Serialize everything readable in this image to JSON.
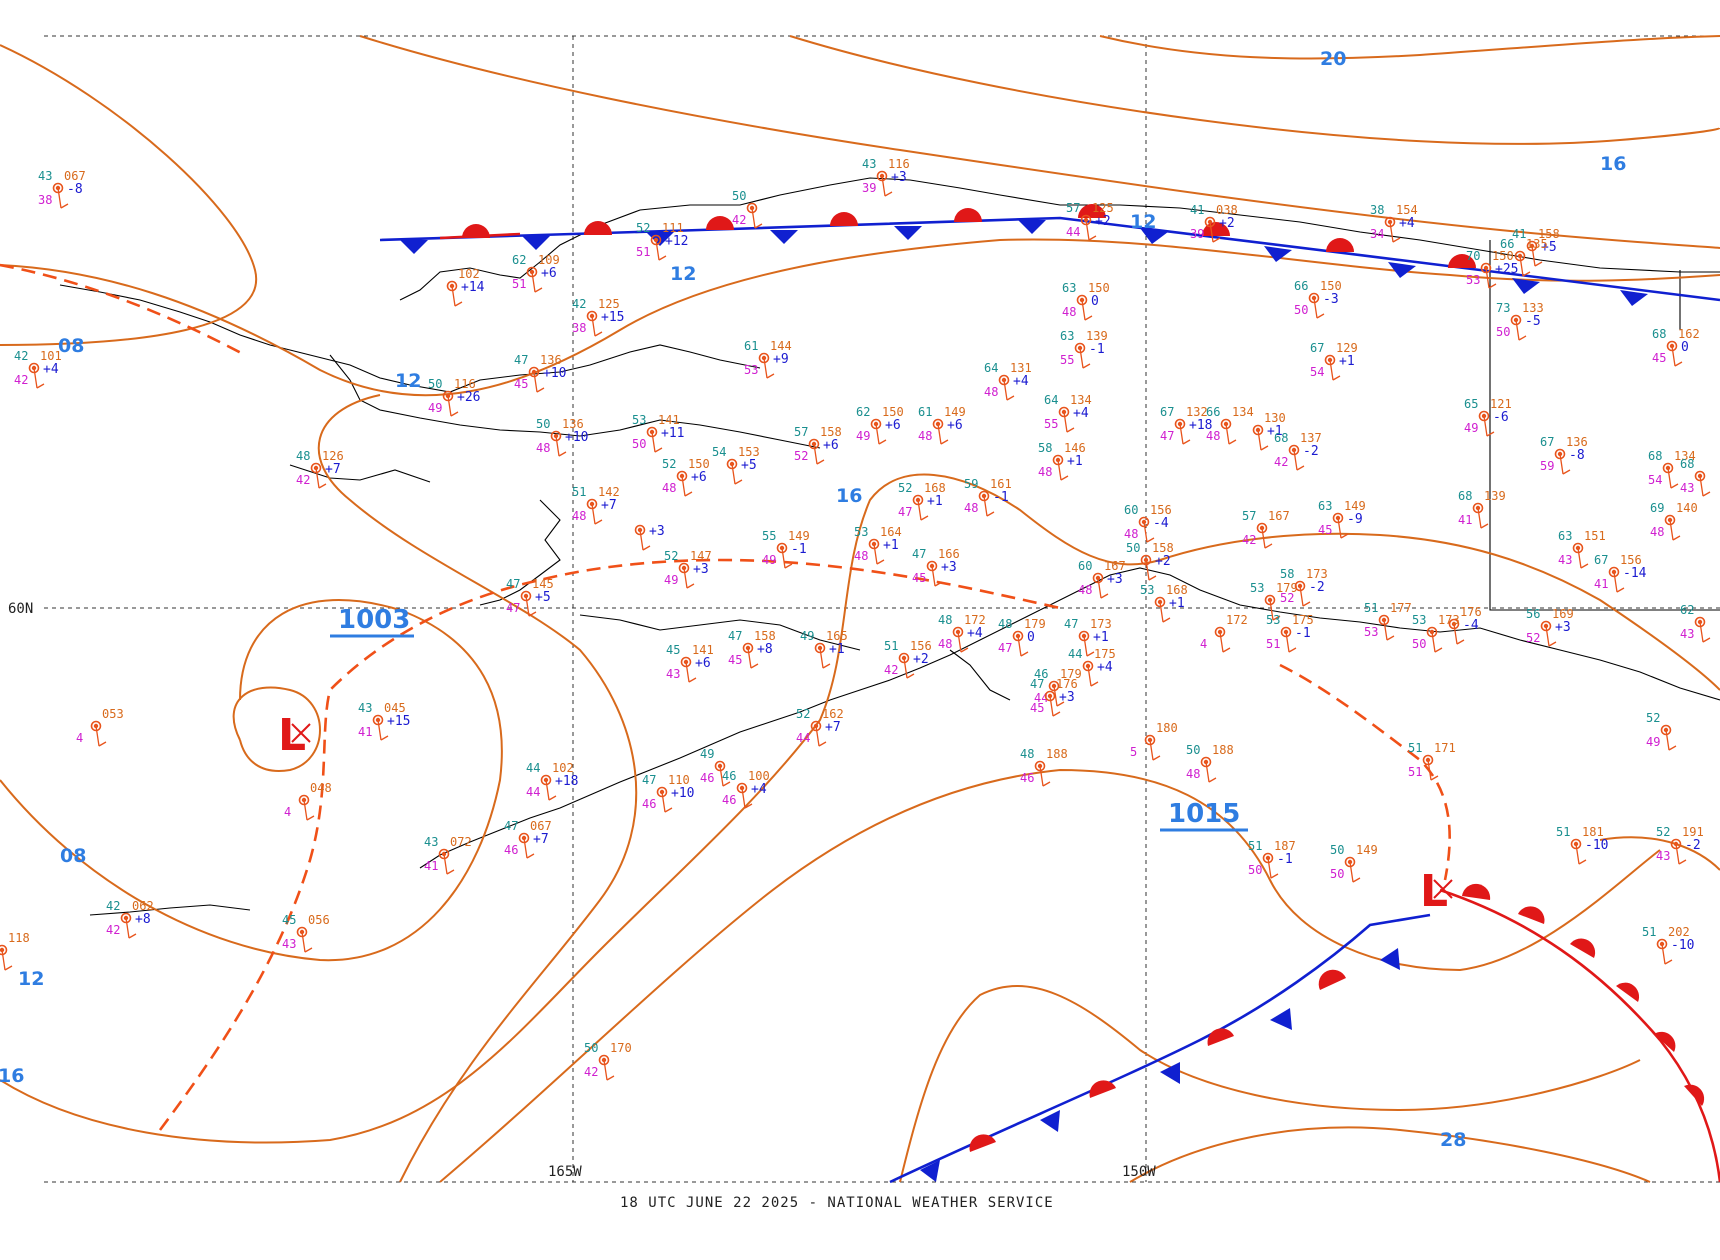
{
  "footer": "18 UTC JUNE 22 2025 - NATIONAL WEATHER SERVICE",
  "axis": {
    "lon_165": "165W",
    "lon_150": "150W",
    "lat_60": "60N"
  },
  "isobar_labels": [
    "08",
    "12",
    "12",
    "12",
    "08",
    "12",
    "16",
    "16",
    "20",
    "16",
    "28"
  ],
  "pressure_centers": [
    {
      "symbol": "L",
      "value": "1003"
    },
    {
      "symbol": "L",
      "value": "1015"
    }
  ],
  "stations": [
    {
      "t": "43",
      "p": "067",
      "tend": "-8",
      "d": "38"
    },
    {
      "t": "42",
      "p": "101",
      "tend": "+4",
      "d": "42"
    },
    {
      "t": "",
      "p": "102",
      "tend": "+14",
      "d": ""
    },
    {
      "t": "62",
      "p": "109",
      "tend": "+6",
      "d": "51"
    },
    {
      "t": "52",
      "p": "111",
      "tend": "+12",
      "d": "51"
    },
    {
      "t": "50",
      "p": "",
      "tend": "",
      "d": "42"
    },
    {
      "t": "43",
      "p": "116",
      "tend": "+3",
      "d": "39"
    },
    {
      "t": "42",
      "p": "125",
      "tend": "+15",
      "d": "38"
    },
    {
      "t": "47",
      "p": "136",
      "tend": "+10",
      "d": "45"
    },
    {
      "t": "50",
      "p": "116",
      "tend": "+26",
      "d": "49"
    },
    {
      "t": "61",
      "p": "144",
      "tend": "+9",
      "d": "53"
    },
    {
      "t": "48",
      "p": "126",
      "tend": "+7",
      "d": "42"
    },
    {
      "t": "50",
      "p": "136",
      "tend": "+10",
      "d": "48"
    },
    {
      "t": "53",
      "p": "141",
      "tend": "+11",
      "d": "50"
    },
    {
      "t": "57",
      "p": "158",
      "tend": "+6",
      "d": "52"
    },
    {
      "t": "62",
      "p": "150",
      "tend": "+6",
      "d": "49"
    },
    {
      "t": "61",
      "p": "149",
      "tend": "+6",
      "d": "48"
    },
    {
      "t": "54",
      "p": "153",
      "tend": "+5",
      "d": ""
    },
    {
      "t": "52",
      "p": "150",
      "tend": "+6",
      "d": "48"
    },
    {
      "t": "51",
      "p": "142",
      "tend": "+7",
      "d": "48"
    },
    {
      "t": "",
      "p": "",
      "tend": "+3",
      "d": ""
    },
    {
      "t": "52",
      "p": "168",
      "tend": "+1",
      "d": "47"
    },
    {
      "t": "59",
      "p": "161",
      "tend": "-1",
      "d": "48"
    },
    {
      "t": "55",
      "p": "149",
      "tend": "-1",
      "d": "49"
    },
    {
      "t": "53",
      "p": "164",
      "tend": "+1",
      "d": "48"
    },
    {
      "t": "47",
      "p": "166",
      "tend": "+3",
      "d": "45"
    },
    {
      "t": "52",
      "p": "147",
      "tend": "+3",
      "d": "49"
    },
    {
      "t": "47",
      "p": "145",
      "tend": "+5",
      "d": "47"
    },
    {
      "t": "47",
      "p": "158",
      "tend": "+8",
      "d": "45"
    },
    {
      "t": "49",
      "p": "165",
      "tend": "+1",
      "d": ""
    },
    {
      "t": "51",
      "p": "156",
      "tend": "+2",
      "d": "42"
    },
    {
      "t": "45",
      "p": "141",
      "tend": "+6",
      "d": "43"
    },
    {
      "t": "52",
      "p": "162",
      "tend": "+7",
      "d": "44"
    },
    {
      "t": "43",
      "p": "045",
      "tend": "+15",
      "d": "41"
    },
    {
      "t": "",
      "p": "053",
      "tend": "",
      "d": "4"
    },
    {
      "t": "",
      "p": "048",
      "tend": "",
      "d": "4"
    },
    {
      "t": "44",
      "p": "102",
      "tend": "+18",
      "d": "44"
    },
    {
      "t": "49",
      "p": "",
      "tend": "",
      "d": "46"
    },
    {
      "t": "47",
      "p": "110",
      "tend": "+10",
      "d": "46"
    },
    {
      "t": "46",
      "p": "100",
      "tend": "+4",
      "d": "46"
    },
    {
      "t": "43",
      "p": "072",
      "tend": "",
      "d": "41"
    },
    {
      "t": "47",
      "p": "067",
      "tend": "+7",
      "d": "46"
    },
    {
      "t": "42",
      "p": "062",
      "tend": "+8",
      "d": "42"
    },
    {
      "t": "45",
      "p": "056",
      "tend": "",
      "d": "43"
    },
    {
      "t": "",
      "p": "118",
      "tend": "",
      "d": ""
    },
    {
      "t": "50",
      "p": "170",
      "tend": "",
      "d": "42"
    },
    {
      "t": "63",
      "p": "150",
      "tend": "0",
      "d": "48"
    },
    {
      "t": "63",
      "p": "139",
      "tend": "-1",
      "d": "55"
    },
    {
      "t": "64",
      "p": "131",
      "tend": "+4",
      "d": "48"
    },
    {
      "t": "64",
      "p": "134",
      "tend": "+4",
      "d": "55"
    },
    {
      "t": "58",
      "p": "146",
      "tend": "+1",
      "d": "48"
    },
    {
      "t": "57",
      "p": "125",
      "tend": "+2",
      "d": "44"
    },
    {
      "t": "41",
      "p": "038",
      "tend": "+2",
      "d": "39"
    },
    {
      "t": "38",
      "p": "154",
      "tend": "+4",
      "d": "34"
    },
    {
      "t": "41",
      "p": "158",
      "tend": "+5",
      "d": ""
    },
    {
      "t": "66",
      "p": "150",
      "tend": "-3",
      "d": "50"
    },
    {
      "t": "67",
      "p": "129",
      "tend": "+1",
      "d": "54"
    },
    {
      "t": "67",
      "p": "132",
      "tend": "+18",
      "d": "47"
    },
    {
      "t": "66",
      "p": "134",
      "tend": "",
      "d": "48"
    },
    {
      "t": "",
      "p": "130",
      "tend": "+1",
      "d": ""
    },
    {
      "t": "68",
      "p": "137",
      "tend": "-2",
      "d": "42"
    },
    {
      "t": "65",
      "p": "121",
      "tend": "-6",
      "d": "49"
    },
    {
      "t": "66",
      "p": "135",
      "tend": "",
      "d": ""
    },
    {
      "t": "70",
      "p": "150",
      "tend": "+25",
      "d": "53"
    },
    {
      "t": "73",
      "p": "133",
      "tend": "-5",
      "d": "50"
    },
    {
      "t": "67",
      "p": "136",
      "tend": "-8",
      "d": "59"
    },
    {
      "t": "68",
      "p": "162",
      "tend": "0",
      "d": "45"
    },
    {
      "t": "68",
      "p": "134",
      "tend": "",
      "d": "54"
    },
    {
      "t": "69",
      "p": "140",
      "tend": "",
      "d": "48"
    },
    {
      "t": "68",
      "p": "139",
      "tend": "",
      "d": "41"
    },
    {
      "t": "63",
      "p": "149",
      "tend": "-9",
      "d": "45"
    },
    {
      "t": "63",
      "p": "151",
      "tend": "",
      "d": "43"
    },
    {
      "t": "67",
      "p": "156",
      "tend": "-14",
      "d": "41"
    },
    {
      "t": "60",
      "p": "156",
      "tend": "-4",
      "d": "48"
    },
    {
      "t": "57",
      "p": "167",
      "tend": "",
      "d": "42"
    },
    {
      "t": "50",
      "p": "158",
      "tend": "+2",
      "d": ""
    },
    {
      "t": "60",
      "p": "167",
      "tend": "+3",
      "d": "48"
    },
    {
      "t": "53",
      "p": "168",
      "tend": "+1",
      "d": ""
    },
    {
      "t": "53",
      "p": "179",
      "tend": "",
      "d": ""
    },
    {
      "t": "58",
      "p": "173",
      "tend": "-2",
      "d": "52"
    },
    {
      "t": "48",
      "p": "172",
      "tend": "+4",
      "d": "48"
    },
    {
      "t": "48",
      "p": "179",
      "tend": "0",
      "d": "47"
    },
    {
      "t": "47",
      "p": "173",
      "tend": "+1",
      "d": ""
    },
    {
      "t": "44",
      "p": "175",
      "tend": "+4",
      "d": ""
    },
    {
      "t": "",
      "p": "172",
      "tend": "",
      "d": "4"
    },
    {
      "t": "53",
      "p": "175",
      "tend": "-1",
      "d": "51"
    },
    {
      "t": "51",
      "p": "177",
      "tend": "",
      "d": "53"
    },
    {
      "t": "",
      "p": "176",
      "tend": "-4",
      "d": ""
    },
    {
      "t": "56",
      "p": "169",
      "tend": "+3",
      "d": "52"
    },
    {
      "t": "46",
      "p": "179",
      "tend": "",
      "d": "44"
    },
    {
      "t": "47",
      "p": "176",
      "tend": "+3",
      "d": "45"
    },
    {
      "t": "",
      "p": "180",
      "tend": "",
      "d": "5"
    },
    {
      "t": "50",
      "p": "188",
      "tend": "",
      "d": "48"
    },
    {
      "t": "48",
      "p": "188",
      "tend": "",
      "d": "46"
    },
    {
      "t": "51",
      "p": "171",
      "tend": "",
      "d": "51"
    },
    {
      "t": "53",
      "p": "173",
      "tend": "",
      "d": "50"
    },
    {
      "t": "51",
      "p": "187",
      "tend": "-1",
      "d": "50"
    },
    {
      "t": "50",
      "p": "149",
      "tend": "",
      "d": "50"
    },
    {
      "t": "51",
      "p": "181",
      "tend": "-10",
      "d": ""
    },
    {
      "t": "52",
      "p": "191",
      "tend": "-2",
      "d": "43"
    },
    {
      "t": "51",
      "p": "202",
      "tend": "-10",
      "d": ""
    },
    {
      "t": "52",
      "p": "",
      "tend": "",
      "d": "49"
    },
    {
      "t": "62",
      "p": "",
      "tend": "",
      "d": "43"
    },
    {
      "t": "68",
      "p": "",
      "tend": "",
      "d": "43"
    }
  ]
}
